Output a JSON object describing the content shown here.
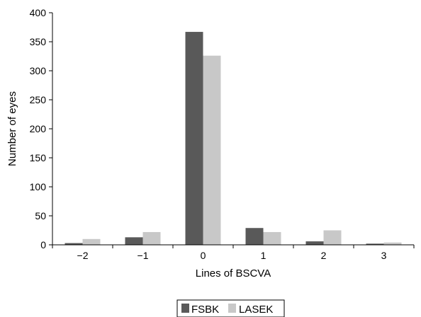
{
  "chart_data": {
    "type": "bar",
    "title": "",
    "xlabel": "Lines of BSCVA",
    "ylabel": "Number of eyes",
    "categories": [
      "−2",
      "−1",
      "0",
      "1",
      "2",
      "3"
    ],
    "series": [
      {
        "name": "FSBK",
        "color": "#595959",
        "values": [
          3,
          13,
          367,
          29,
          6,
          2
        ]
      },
      {
        "name": "LASEK",
        "color": "#c8c8c8",
        "values": [
          10,
          22,
          326,
          22,
          25,
          4
        ]
      }
    ],
    "ylim": [
      0,
      400
    ],
    "yticks": [
      0,
      50,
      100,
      150,
      200,
      250,
      300,
      350,
      400
    ],
    "grid": false,
    "legend_position": "bottom-center"
  }
}
